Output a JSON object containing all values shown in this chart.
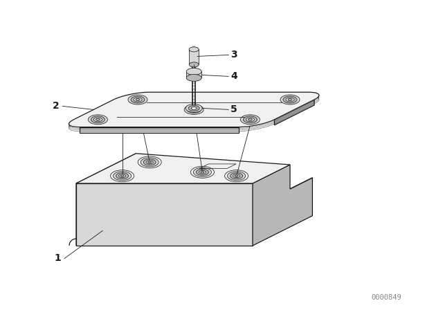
{
  "background_color": "#ffffff",
  "line_color": "#1a1a1a",
  "face_light": "#f0f0f0",
  "face_mid": "#d8d8d8",
  "face_dark": "#b8b8b8",
  "face_side": "#c8c8c8",
  "watermark": "0000849",
  "watermark_color": "#888888",
  "label_fontsize": 10,
  "watermark_fontsize": 7.5,
  "lw_main": 0.9,
  "lw_thin": 0.55,
  "lw_leader": 0.6
}
